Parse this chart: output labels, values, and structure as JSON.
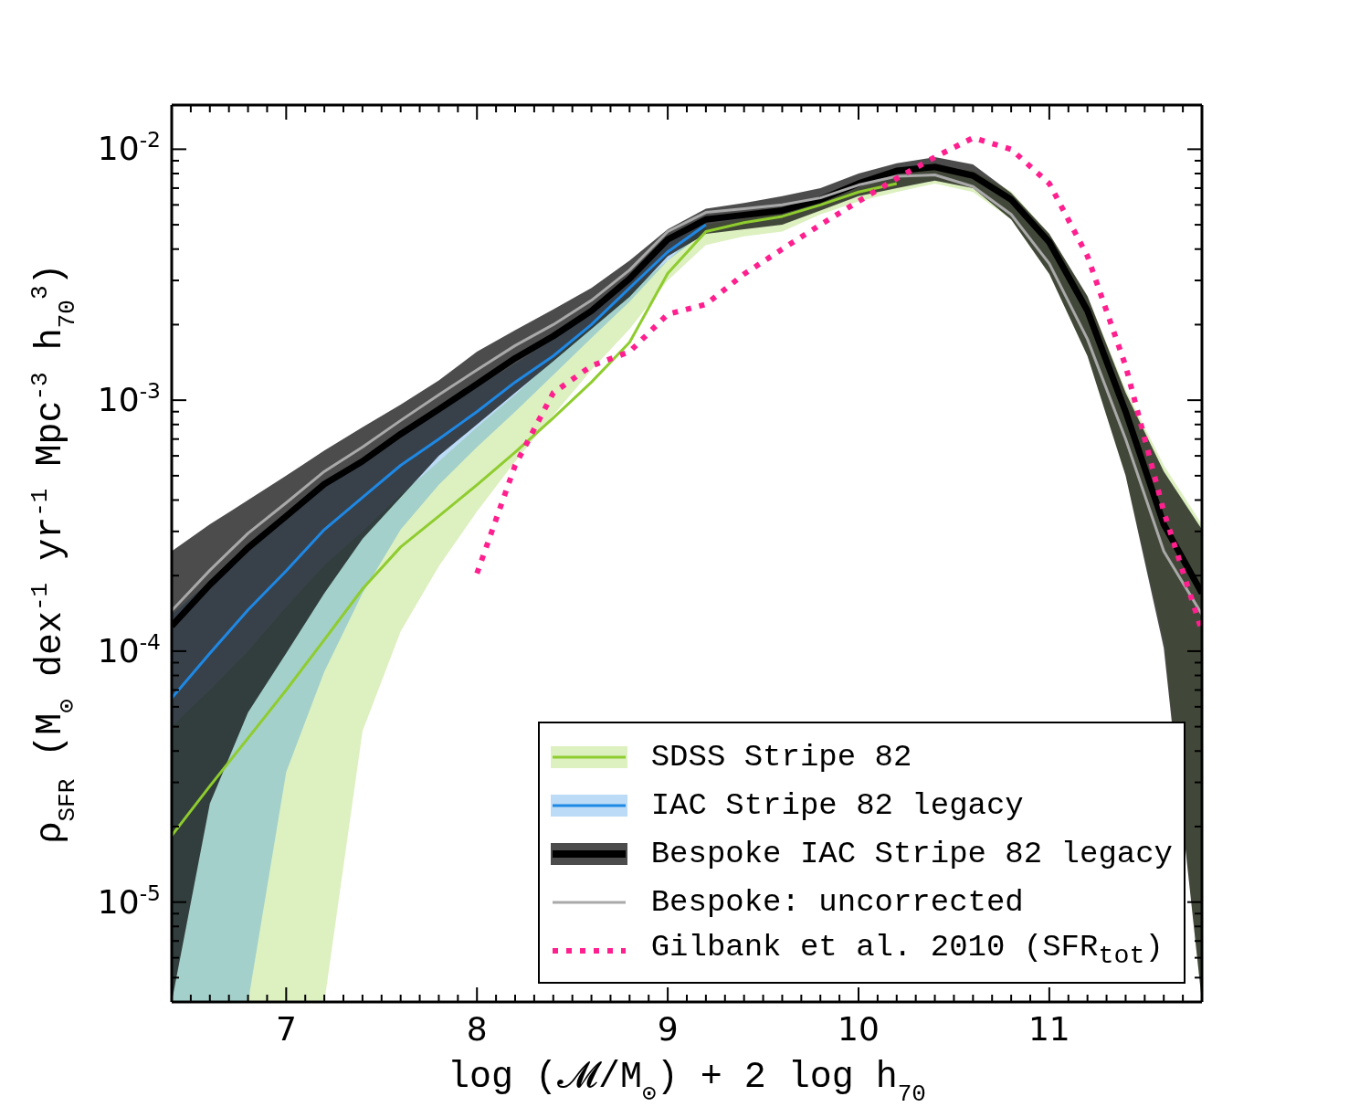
{
  "chart_data": {
    "type": "line",
    "xlabel": "log (𝓜/M$_{⊙}$) + 2 log h$_{70}$",
    "ylabel": "ρ$_{SFR}$  (M$_{⊙}$ dex$^{-1}$ yr$^{-1}$ Mpc$^{-3}$ h$_{70}$$^{3}$)",
    "log": "y",
    "legend": "bottom right",
    "xlim": [
      6.4,
      11.8
    ],
    "ylim": [
      4e-06,
      0.015
    ],
    "xticks": [
      {
        "value": 6.5,
        "label": null
      },
      {
        "value": 6.6,
        "label": null
      },
      {
        "value": 6.7,
        "label": null
      },
      {
        "value": 6.8,
        "label": null
      },
      {
        "value": 6.9,
        "label": null
      },
      7,
      {
        "value": 7.1,
        "label": null
      },
      {
        "value": 7.2,
        "label": null
      },
      {
        "value": 7.3,
        "label": null
      },
      {
        "value": 7.4,
        "label": null
      },
      {
        "value": 7.5,
        "label": null
      },
      {
        "value": 7.6,
        "label": null
      },
      {
        "value": 7.7,
        "label": null
      },
      {
        "value": 7.8,
        "label": null
      },
      {
        "value": 7.9,
        "label": null
      },
      8,
      {
        "value": 8.1,
        "label": null
      },
      {
        "value": 8.2,
        "label": null
      },
      {
        "value": 8.3,
        "label": null
      },
      {
        "value": 8.4,
        "label": null
      },
      {
        "value": 8.5,
        "label": null
      },
      {
        "value": 8.6,
        "label": null
      },
      {
        "value": 8.7,
        "label": null
      },
      {
        "value": 8.8,
        "label": null
      },
      {
        "value": 8.9,
        "label": null
      },
      9,
      {
        "value": 9.1,
        "label": null
      },
      {
        "value": 9.2,
        "label": null
      },
      {
        "value": 9.3,
        "label": null
      },
      {
        "value": 9.4,
        "label": null
      },
      {
        "value": 9.5,
        "label": null
      },
      {
        "value": 9.6,
        "label": null
      },
      {
        "value": 9.7,
        "label": null
      },
      {
        "value": 9.8,
        "label": null
      },
      {
        "value": 9.9,
        "label": null
      },
      10,
      {
        "value": 10.1,
        "label": null
      },
      {
        "value": 10.2,
        "label": null
      },
      {
        "value": 10.3,
        "label": null
      },
      {
        "value": 10.4,
        "label": null
      },
      {
        "value": 10.5,
        "label": null
      },
      {
        "value": 10.6,
        "label": null
      },
      {
        "value": 10.7,
        "label": null
      },
      {
        "value": 10.8,
        "label": null
      },
      {
        "value": 10.9,
        "label": null
      },
      11,
      {
        "value": 11.1,
        "label": null
      },
      {
        "value": 11.2,
        "label": null
      },
      {
        "value": 11.3,
        "label": null
      },
      {
        "value": 11.4,
        "label": null
      },
      {
        "value": 11.5,
        "label": null
      },
      {
        "value": 11.6,
        "label": null
      },
      {
        "value": 11.7,
        "label": null
      }
    ],
    "yticks": [
      {
        "value": 5e-06,
        "label": null
      },
      {
        "value": 6e-06,
        "label": null
      },
      {
        "value": 7e-06,
        "label": null
      },
      {
        "value": 8e-06,
        "label": null
      },
      {
        "value": 9e-06,
        "label": null
      },
      {
        "value": 1e-05,
        "label": "10$^{-5}$"
      },
      {
        "value": 2e-05,
        "label": null
      },
      {
        "value": 3e-05,
        "label": null
      },
      {
        "value": 4e-05,
        "label": null
      },
      {
        "value": 5e-05,
        "label": null
      },
      {
        "value": 6e-05,
        "label": null
      },
      {
        "value": 7e-05,
        "label": null
      },
      {
        "value": 8e-05,
        "label": null
      },
      {
        "value": 9e-05,
        "label": null
      },
      {
        "value": 0.0001,
        "label": "10$^{-4}$"
      },
      {
        "value": 0.0002,
        "label": null
      },
      {
        "value": 0.0003,
        "label": null
      },
      {
        "value": 0.0004,
        "label": null
      },
      {
        "value": 0.0005,
        "label": null
      },
      {
        "value": 0.0006,
        "label": null
      },
      {
        "value": 0.0007,
        "label": null
      },
      {
        "value": 0.0008,
        "label": null
      },
      {
        "value": 0.0009,
        "label": null
      },
      {
        "value": 0.001,
        "label": "10$^{-3}$"
      },
      {
        "value": 0.002,
        "label": null
      },
      {
        "value": 0.003,
        "label": null
      },
      {
        "value": 0.004,
        "label": null
      },
      {
        "value": 0.005,
        "label": null
      },
      {
        "value": 0.006,
        "label": null
      },
      {
        "value": 0.007,
        "label": null
      },
      {
        "value": 0.008,
        "label": null
      },
      {
        "value": 0.009,
        "label": null
      },
      {
        "value": 0.01,
        "label": "10$^{-2}$"
      }
    ],
    "x": [
      6.4,
      6.6,
      6.8,
      7.0,
      7.2,
      7.4,
      7.6,
      7.8,
      8.0,
      8.2,
      8.4,
      8.6,
      8.8,
      9.0,
      9.2,
      9.4,
      9.6,
      9.8,
      10.0,
      10.2,
      10.4,
      10.6,
      10.8,
      11.0,
      11.2,
      11.4,
      11.6,
      11.8
    ],
    "series": [
      {
        "name": "SDSS Stripe 82",
        "color": "#8fcc2e",
        "values": [
          1.84e-05,
          2.9e-05,
          4.5e-05,
          7e-05,
          0.000111,
          0.000177,
          0.00026,
          0.000345,
          0.00046,
          0.00062,
          0.00085,
          0.00118,
          0.0017,
          0.0032,
          0.0047,
          0.0051,
          0.0054,
          0.006,
          0.00675,
          0.0073,
          null,
          null,
          null,
          null,
          null,
          null,
          null,
          null
        ],
        "lower": [
          4e-06,
          4e-06,
          4e-06,
          4e-06,
          4e-06,
          4.8e-05,
          0.00012,
          0.000218,
          0.00036,
          0.00057,
          0.00087,
          0.00132,
          0.00192,
          0.003,
          0.00415,
          0.0045,
          0.0047,
          0.0055,
          0.0062,
          0.00675,
          0.0073,
          0.00675,
          0.00525,
          0.00318,
          0.0015,
          0.0005,
          0.00011,
          4e-06
        ],
        "upper": [
          5e-05,
          7e-05,
          0.0001,
          0.00015,
          0.00022,
          0.0003,
          0.00042,
          0.00057,
          0.00078,
          0.00105,
          0.00145,
          0.002,
          0.0027,
          0.0036,
          0.005,
          0.0053,
          0.0056,
          0.0062,
          0.007,
          0.0078,
          0.0085,
          0.0082,
          0.0068,
          0.0046,
          0.0026,
          0.0011,
          0.00055,
          0.00032
        ]
      },
      {
        "name": "IAC Stripe 82 legacy",
        "color": "#1e88e5",
        "values": [
          6.5e-05,
          9.8e-05,
          0.000146,
          0.000209,
          0.000305,
          0.00041,
          0.00055,
          0.0007,
          0.0009,
          0.00118,
          0.0015,
          0.002,
          0.0028,
          0.0039,
          0.005,
          null,
          null,
          null,
          null,
          null,
          null,
          null,
          null,
          null,
          null,
          null,
          null,
          null
        ],
        "lower": [
          4e-06,
          4e-06,
          4e-06,
          3.3e-05,
          8.3e-05,
          0.00017,
          0.000305,
          0.00046,
          0.00065,
          0.0009,
          0.00126,
          0.00177,
          0.00247,
          0.0036,
          0.0047,
          null,
          null,
          null,
          null,
          null,
          null,
          null,
          null,
          null,
          null,
          null,
          null,
          null
        ],
        "upper": [
          0.00014,
          0.00019,
          0.00026,
          0.00034,
          0.00045,
          0.00056,
          0.00072,
          0.0009,
          0.00113,
          0.0014,
          0.00175,
          0.0022,
          0.003,
          0.0044,
          0.0054,
          null,
          null,
          null,
          null,
          null,
          null,
          null,
          null,
          null,
          null,
          null,
          null,
          null
        ]
      },
      {
        "name": "Bespoke IAC Stripe 82 legacy",
        "color": "#000000",
        "values": [
          0.000126,
          0.000184,
          0.000258,
          0.000345,
          0.000463,
          0.000571,
          0.000733,
          0.00092,
          0.00116,
          0.00147,
          0.0018,
          0.00227,
          0.00305,
          0.00437,
          0.00525,
          0.00547,
          0.0057,
          0.0063,
          0.0073,
          0.0082,
          0.0085,
          0.00785,
          0.0063,
          0.00426,
          0.00227,
          0.0009,
          0.00032,
          0.00017
        ],
        "lower": [
          4e-06,
          2.47e-05,
          5.7e-05,
          9.8e-05,
          0.00017,
          0.00028,
          0.00041,
          0.0006,
          0.0008,
          0.00107,
          0.00143,
          0.00192,
          0.00258,
          0.00375,
          0.0046,
          0.0048,
          0.005,
          0.0057,
          0.0065,
          0.007,
          0.0075,
          0.007,
          0.00525,
          0.00318,
          0.0015,
          0.0005,
          0.000103,
          4e-06
        ],
        "upper": [
          0.00025,
          0.00032,
          0.0004,
          0.0005,
          0.00063,
          0.00078,
          0.00096,
          0.0012,
          0.00156,
          0.0019,
          0.0023,
          0.0028,
          0.0036,
          0.0048,
          0.0058,
          0.0061,
          0.0065,
          0.007,
          0.008,
          0.0088,
          0.0093,
          0.0087,
          0.0067,
          0.0046,
          0.0026,
          0.00107,
          0.00052,
          0.000305
        ]
      },
      {
        "name": "Bespoke: uncorrected",
        "color": "#a9a9a9",
        "values": [
          0.000145,
          0.00021,
          0.000295,
          0.00039,
          0.00052,
          0.00065,
          0.00083,
          0.00105,
          0.00132,
          0.00165,
          0.002,
          0.0025,
          0.0033,
          0.0047,
          0.0056,
          0.0058,
          0.006,
          0.0064,
          0.0072,
          0.0078,
          0.0079,
          0.0071,
          0.0055,
          0.0035,
          0.00175,
          0.0007,
          0.00025,
          0.00014
        ]
      },
      {
        "name": "Gilbank et al. 2010 (SFR$_{tot}$)",
        "color": "#ff1f8e",
        "line_style": "dotted",
        "values": [
          null,
          null,
          null,
          null,
          null,
          null,
          null,
          null,
          0.000204,
          0.00055,
          0.00107,
          0.00137,
          0.00156,
          0.0022,
          0.00241,
          0.00318,
          0.004,
          0.005,
          0.0062,
          0.00765,
          0.0093,
          0.0111,
          0.01,
          0.0073,
          0.00375,
          0.00137,
          0.00036,
          0.00012
        ]
      }
    ]
  }
}
